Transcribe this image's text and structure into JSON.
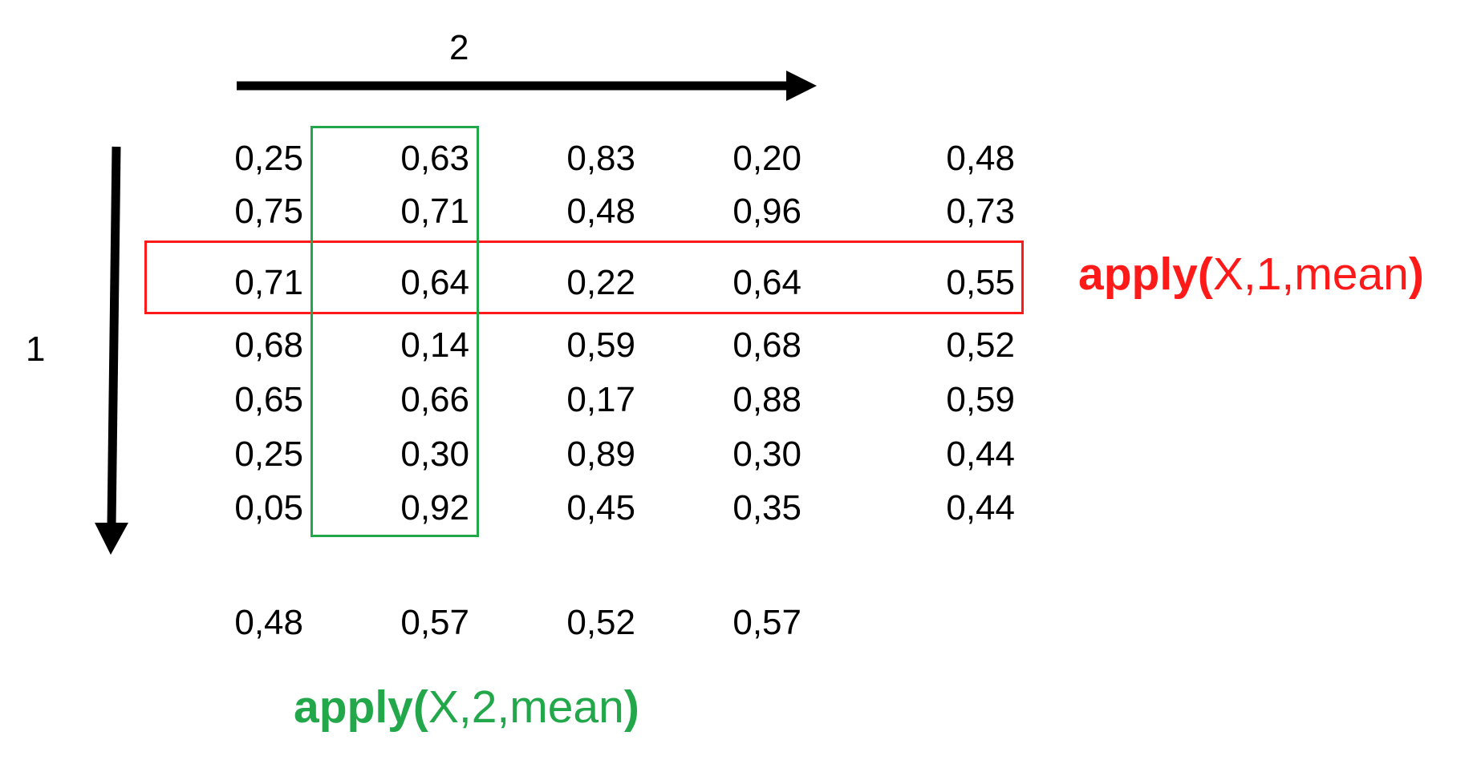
{
  "axes": {
    "columns_label": "2",
    "rows_label": "1"
  },
  "matrix": [
    [
      "0,25",
      "0,63",
      "0,83",
      "0,20",
      "0,48"
    ],
    [
      "0,75",
      "0,71",
      "0,48",
      "0,96",
      "0,73"
    ],
    [
      "0,71",
      "0,64",
      "0,22",
      "0,64",
      "0,55"
    ],
    [
      "0,68",
      "0,14",
      "0,59",
      "0,68",
      "0,52"
    ],
    [
      "0,65",
      "0,66",
      "0,17",
      "0,88",
      "0,59"
    ],
    [
      "0,25",
      "0,30",
      "0,89",
      "0,30",
      "0,44"
    ],
    [
      "0,05",
      "0,92",
      "0,45",
      "0,35",
      "0,44"
    ]
  ],
  "column_means": [
    "0,48",
    "0,57",
    "0,52",
    "0,57"
  ],
  "row_highlight": {
    "row_index": 2,
    "color": "#ff1a1a",
    "label_keyword": "apply(",
    "label_args": "X,1,mean",
    "label_close": ")"
  },
  "column_highlight": {
    "column_index": 1,
    "color": "#22a84a",
    "label_keyword": "apply(",
    "label_args": "X,2,mean",
    "label_close": ")"
  },
  "colors": {
    "text": "#000000",
    "arrow": "#000000"
  }
}
